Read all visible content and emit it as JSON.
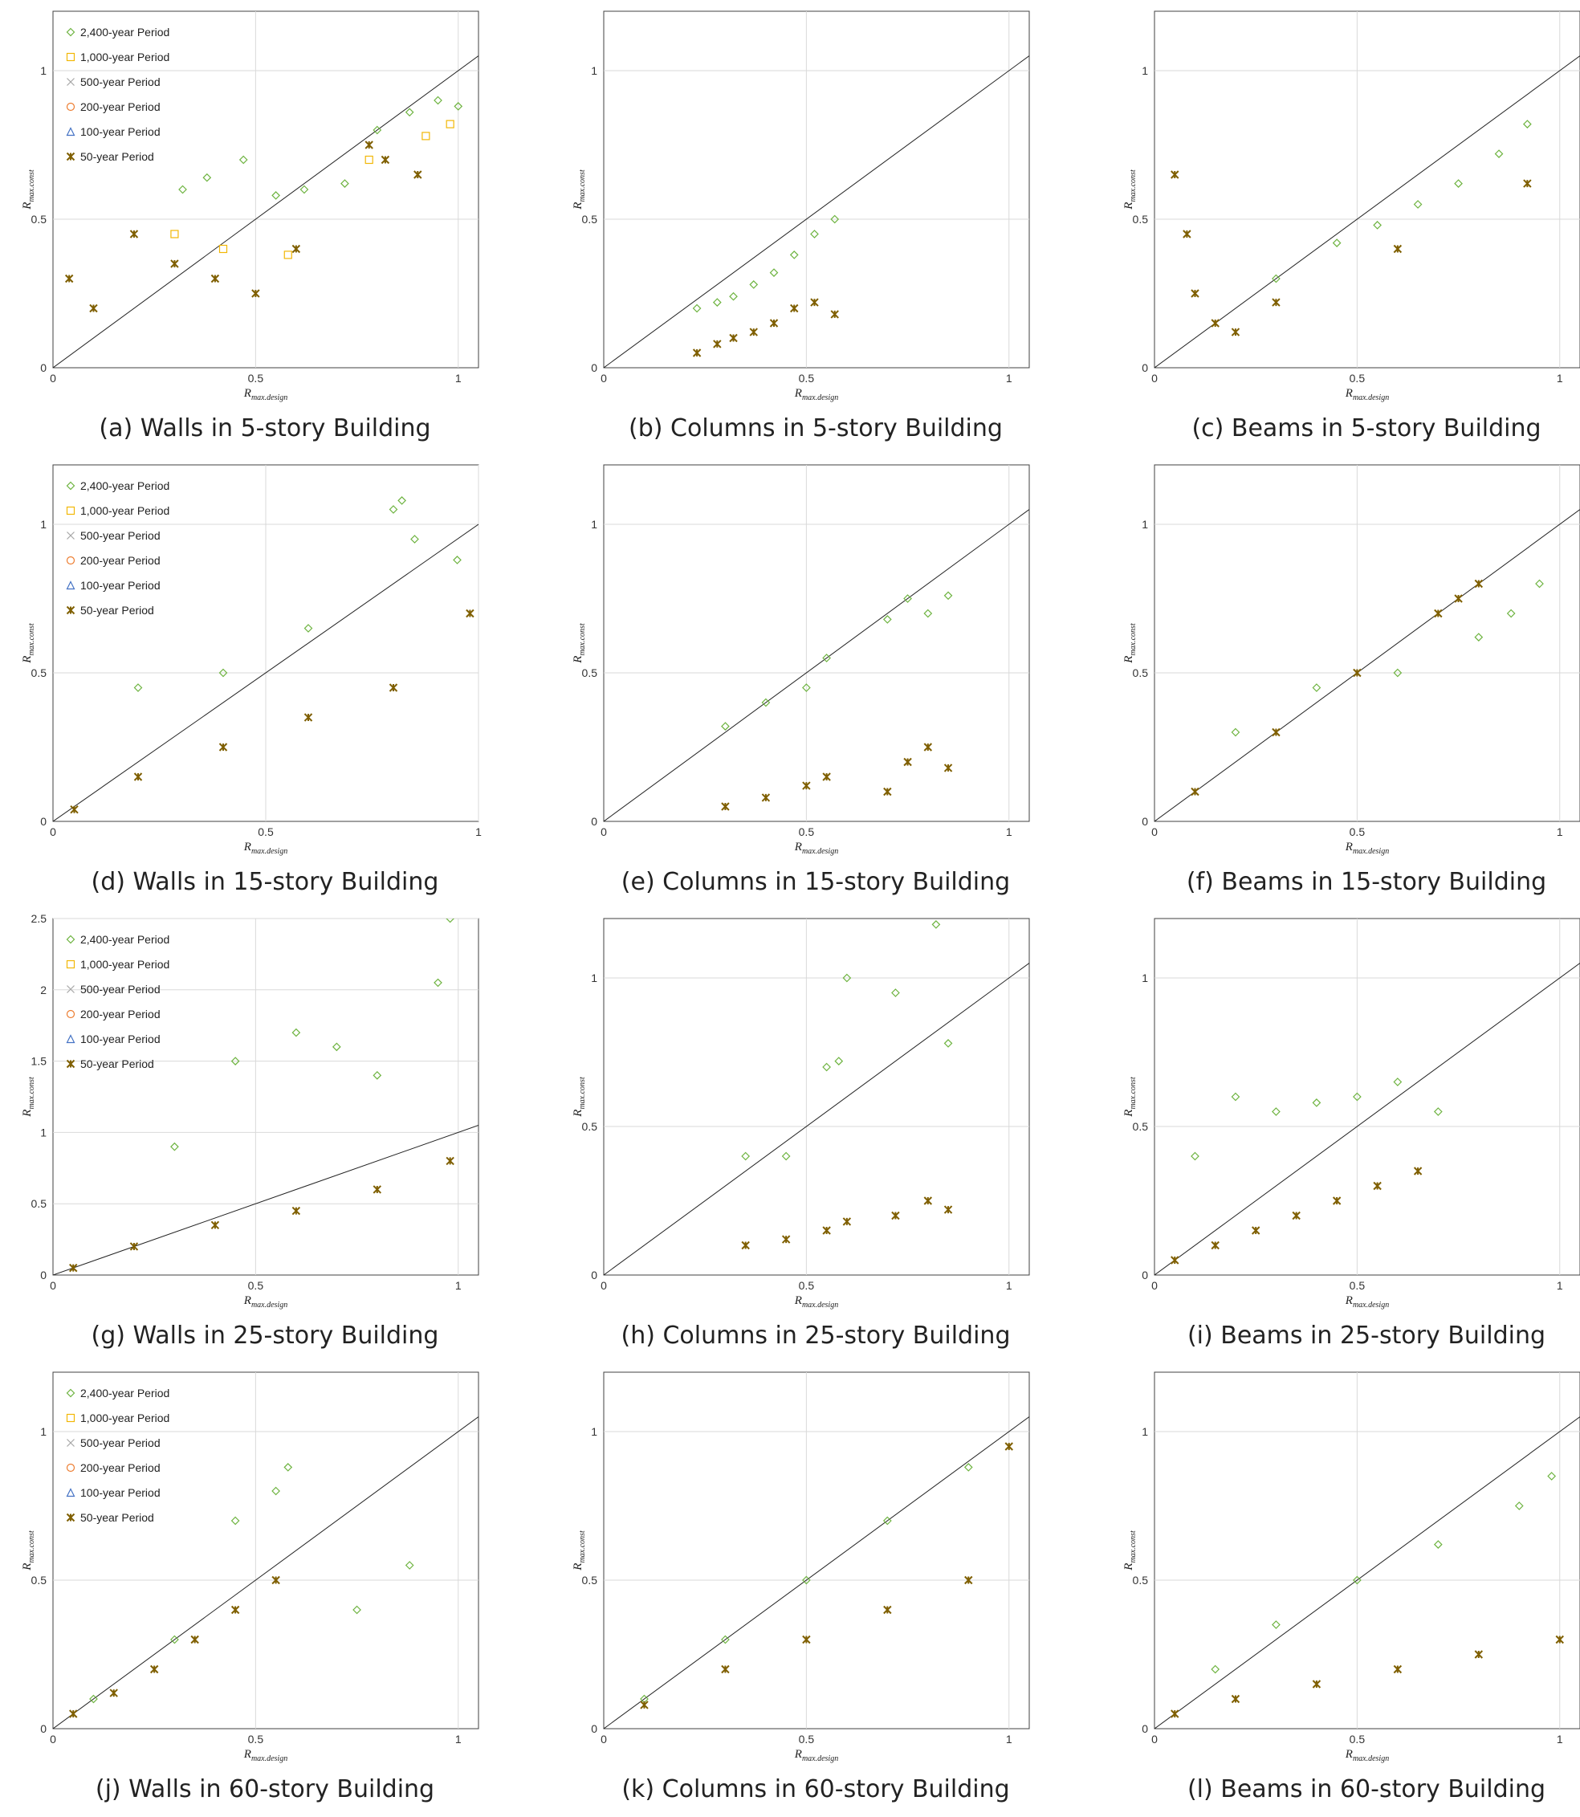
{
  "legend_entries": [
    "2,400-year Period",
    "1,000-year Period",
    "500-year Period",
    "200-year Period",
    "100-year Period",
    "50-year Period"
  ],
  "series_colors": [
    "#6db33f",
    "#f2b705",
    "#a6a6a6",
    "#ed7d31",
    "#4472c4",
    "#7f5f00"
  ],
  "series_markers": [
    "diamond",
    "square",
    "cross",
    "circle",
    "triangle",
    "star"
  ],
  "x_axis": {
    "label_main": "R",
    "label_sub": "max.design"
  },
  "y_axis": {
    "label_main": "R",
    "label_sub": "max.const"
  },
  "chart_data": [
    {
      "type": "scatter",
      "caption": "(a) Walls in 5-story Building",
      "xlim": [
        0,
        1.05
      ],
      "ylim": [
        0,
        1.2
      ],
      "xticks": [
        "0",
        "0.5",
        "1"
      ],
      "yticks": [
        "0",
        "0.5",
        "1"
      ],
      "legend": true,
      "reference_line": "y = x",
      "series": [
        {
          "name": "2,400-year Period",
          "x": [
            0.32,
            0.38,
            0.47,
            0.55,
            0.62,
            0.72,
            0.8,
            0.88,
            0.95,
            1.0
          ],
          "y": [
            0.6,
            0.64,
            0.7,
            0.58,
            0.6,
            0.62,
            0.8,
            0.86,
            0.9,
            0.88
          ]
        },
        {
          "name": "1,000-year Period",
          "x": [
            0.3,
            0.42,
            0.58,
            0.78,
            0.92,
            0.98
          ],
          "y": [
            0.45,
            0.4,
            0.38,
            0.7,
            0.78,
            0.82
          ]
        },
        {
          "name": "50-year Period",
          "x": [
            0.04,
            0.1,
            0.2,
            0.3,
            0.4,
            0.5,
            0.6,
            0.78,
            0.82,
            0.9
          ],
          "y": [
            0.3,
            0.2,
            0.45,
            0.35,
            0.3,
            0.25,
            0.4,
            0.75,
            0.7,
            0.65
          ]
        }
      ]
    },
    {
      "type": "scatter",
      "caption": "(b) Columns in 5-story Building",
      "xlim": [
        0,
        1.05
      ],
      "ylim": [
        0,
        1.2
      ],
      "xticks": [
        "0",
        "0.5",
        "1"
      ],
      "yticks": [
        "0",
        "0.5",
        "1"
      ],
      "legend": false,
      "reference_line": "y = x",
      "series": [
        {
          "name": "2,400-year Period",
          "x": [
            0.23,
            0.28,
            0.32,
            0.37,
            0.42,
            0.47,
            0.52,
            0.57
          ],
          "y": [
            0.2,
            0.22,
            0.24,
            0.28,
            0.32,
            0.38,
            0.45,
            0.5
          ]
        },
        {
          "name": "50-year Period",
          "x": [
            0.23,
            0.28,
            0.32,
            0.37,
            0.42,
            0.47,
            0.52,
            0.57
          ],
          "y": [
            0.05,
            0.08,
            0.1,
            0.12,
            0.15,
            0.2,
            0.22,
            0.18
          ]
        }
      ]
    },
    {
      "type": "scatter",
      "caption": "(c) Beams in 5-story Building",
      "xlim": [
        0,
        1.05
      ],
      "ylim": [
        0,
        1.2
      ],
      "xticks": [
        "0",
        "0.5",
        "1"
      ],
      "yticks": [
        "0",
        "0.5",
        "1"
      ],
      "legend": false,
      "reference_line": "y = x",
      "series": [
        {
          "name": "2,400-year Period",
          "x": [
            0.3,
            0.45,
            0.55,
            0.65,
            0.75,
            0.85,
            0.92
          ],
          "y": [
            0.3,
            0.42,
            0.48,
            0.55,
            0.62,
            0.72,
            0.82
          ]
        },
        {
          "name": "50-year Period",
          "x": [
            0.05,
            0.08,
            0.1,
            0.15,
            0.2,
            0.3,
            0.6,
            0.92
          ],
          "y": [
            0.65,
            0.45,
            0.25,
            0.15,
            0.12,
            0.22,
            0.4,
            0.62
          ]
        }
      ]
    },
    {
      "type": "scatter",
      "caption": "(d) Walls in 15-story Building",
      "xlim": [
        0,
        1
      ],
      "ylim": [
        0,
        1.2
      ],
      "xticks": [
        "0",
        "0.5",
        "1"
      ],
      "yticks": [
        "0",
        "0.5",
        "1"
      ],
      "legend": true,
      "reference_line": "y = x",
      "series": [
        {
          "name": "2,400-year Period",
          "x": [
            0.2,
            0.4,
            0.6,
            0.8,
            0.82,
            0.85,
            0.95
          ],
          "y": [
            0.45,
            0.5,
            0.65,
            1.05,
            1.08,
            0.95,
            0.88
          ]
        },
        {
          "name": "50-year Period",
          "x": [
            0.05,
            0.2,
            0.4,
            0.6,
            0.8,
            0.98
          ],
          "y": [
            0.04,
            0.15,
            0.25,
            0.35,
            0.45,
            0.7
          ]
        }
      ]
    },
    {
      "type": "scatter",
      "caption": "(e) Columns in 15-story Building",
      "xlim": [
        0,
        1.05
      ],
      "ylim": [
        0,
        1.2
      ],
      "xticks": [
        "0",
        "0.5",
        "1"
      ],
      "yticks": [
        "0",
        "0.5",
        "1"
      ],
      "legend": false,
      "reference_line": "y = x",
      "series": [
        {
          "name": "2,400-year Period",
          "x": [
            0.3,
            0.4,
            0.5,
            0.55,
            0.7,
            0.75,
            0.8,
            0.85
          ],
          "y": [
            0.32,
            0.4,
            0.45,
            0.55,
            0.68,
            0.75,
            0.7,
            0.76
          ]
        },
        {
          "name": "50-year Period",
          "x": [
            0.3,
            0.4,
            0.5,
            0.55,
            0.7,
            0.75,
            0.8,
            0.85
          ],
          "y": [
            0.05,
            0.08,
            0.12,
            0.15,
            0.1,
            0.2,
            0.25,
            0.18
          ]
        }
      ]
    },
    {
      "type": "scatter",
      "caption": "(f) Beams in 15-story Building",
      "xlim": [
        0,
        1.05
      ],
      "ylim": [
        0,
        1.2
      ],
      "xticks": [
        "0",
        "0.5",
        "1"
      ],
      "yticks": [
        "0",
        "0.5",
        "1"
      ],
      "legend": false,
      "reference_line": "y = x",
      "series": [
        {
          "name": "2,400-year Period",
          "x": [
            0.2,
            0.4,
            0.6,
            0.8,
            0.88,
            0.95
          ],
          "y": [
            0.3,
            0.45,
            0.5,
            0.62,
            0.7,
            0.8
          ]
        },
        {
          "name": "50-year Period",
          "x": [
            0.1,
            0.3,
            0.5,
            0.7,
            0.75,
            0.8
          ],
          "y": [
            0.1,
            0.3,
            0.5,
            0.7,
            0.75,
            0.8
          ]
        }
      ]
    },
    {
      "type": "scatter",
      "caption": "(g) Walls in 25-story Building",
      "xlim": [
        0,
        1.05
      ],
      "ylim": [
        0,
        2.5
      ],
      "xticks": [
        "0",
        "0.5",
        "1"
      ],
      "yticks": [
        "0",
        "0.5",
        "1",
        "1.5",
        "2",
        "2.5"
      ],
      "legend": true,
      "reference_line": "y = x",
      "series": [
        {
          "name": "2,400-year Period",
          "x": [
            0.3,
            0.45,
            0.6,
            0.7,
            0.8,
            0.95,
            0.98
          ],
          "y": [
            0.9,
            1.5,
            1.7,
            1.6,
            1.4,
            2.05,
            2.5
          ]
        },
        {
          "name": "50-year Period",
          "x": [
            0.05,
            0.2,
            0.4,
            0.6,
            0.8,
            0.98
          ],
          "y": [
            0.05,
            0.2,
            0.35,
            0.45,
            0.6,
            0.8
          ]
        }
      ]
    },
    {
      "type": "scatter",
      "caption": "(h) Columns in 25-story Building",
      "xlim": [
        0,
        1.05
      ],
      "ylim": [
        0,
        1.2
      ],
      "xticks": [
        "0",
        "0.5",
        "1"
      ],
      "yticks": [
        "0",
        "0.5",
        "1"
      ],
      "legend": false,
      "reference_line": "y = x",
      "series": [
        {
          "name": "2,400-year Period",
          "x": [
            0.35,
            0.45,
            0.55,
            0.58,
            0.6,
            0.72,
            0.82,
            0.85
          ],
          "y": [
            0.4,
            0.4,
            0.7,
            0.72,
            1.0,
            0.95,
            1.18,
            0.78
          ]
        },
        {
          "name": "50-year Period",
          "x": [
            0.35,
            0.45,
            0.55,
            0.6,
            0.72,
            0.8,
            0.85
          ],
          "y": [
            0.1,
            0.12,
            0.15,
            0.18,
            0.2,
            0.25,
            0.22
          ]
        }
      ]
    },
    {
      "type": "scatter",
      "caption": "(i) Beams in 25-story Building",
      "xlim": [
        0,
        1.05
      ],
      "ylim": [
        0,
        1.2
      ],
      "xticks": [
        "0",
        "0.5",
        "1"
      ],
      "yticks": [
        "0",
        "0.5",
        "1"
      ],
      "legend": false,
      "reference_line": "y = x",
      "series": [
        {
          "name": "2,400-year Period",
          "x": [
            0.1,
            0.2,
            0.3,
            0.4,
            0.5,
            0.6,
            0.7
          ],
          "y": [
            0.4,
            0.6,
            0.55,
            0.58,
            0.6,
            0.65,
            0.55
          ]
        },
        {
          "name": "50-year Period",
          "x": [
            0.05,
            0.15,
            0.25,
            0.35,
            0.45,
            0.55,
            0.65
          ],
          "y": [
            0.05,
            0.1,
            0.15,
            0.2,
            0.25,
            0.3,
            0.35
          ]
        }
      ]
    },
    {
      "type": "scatter",
      "caption": "(j) Walls in 60-story Building",
      "xlim": [
        0,
        1.05
      ],
      "ylim": [
        0,
        1.2
      ],
      "xticks": [
        "0",
        "0.5",
        "1"
      ],
      "yticks": [
        "0",
        "0.5",
        "1"
      ],
      "legend": true,
      "reference_line": "y = x",
      "series": [
        {
          "name": "2,400-year Period",
          "x": [
            0.1,
            0.3,
            0.45,
            0.55,
            0.58,
            0.75,
            0.88
          ],
          "y": [
            0.1,
            0.3,
            0.7,
            0.8,
            0.88,
            0.4,
            0.55
          ]
        },
        {
          "name": "50-year Period",
          "x": [
            0.05,
            0.15,
            0.25,
            0.35,
            0.45,
            0.55
          ],
          "y": [
            0.05,
            0.12,
            0.2,
            0.3,
            0.4,
            0.5
          ]
        }
      ]
    },
    {
      "type": "scatter",
      "caption": "(k) Columns in 60-story Building",
      "xlim": [
        0,
        1.05
      ],
      "ylim": [
        0,
        1.2
      ],
      "xticks": [
        "0",
        "0.5",
        "1"
      ],
      "yticks": [
        "0",
        "0.5",
        "1"
      ],
      "legend": false,
      "reference_line": "y = x",
      "series": [
        {
          "name": "2,400-year Period",
          "x": [
            0.1,
            0.3,
            0.5,
            0.7,
            0.9
          ],
          "y": [
            0.1,
            0.3,
            0.5,
            0.7,
            0.88
          ]
        },
        {
          "name": "50-year Period",
          "x": [
            0.1,
            0.3,
            0.5,
            0.7,
            0.9,
            1.0
          ],
          "y": [
            0.08,
            0.2,
            0.3,
            0.4,
            0.5,
            0.95
          ]
        }
      ]
    },
    {
      "type": "scatter",
      "caption": "(l) Beams in 60-story Building",
      "xlim": [
        0,
        1.05
      ],
      "ylim": [
        0,
        1.2
      ],
      "xticks": [
        "0",
        "0.5",
        "1"
      ],
      "yticks": [
        "0",
        "0.5",
        "1"
      ],
      "legend": false,
      "reference_line": "y = x",
      "series": [
        {
          "name": "2,400-year Period",
          "x": [
            0.15,
            0.3,
            0.5,
            0.7,
            0.9,
            0.98
          ],
          "y": [
            0.2,
            0.35,
            0.5,
            0.62,
            0.75,
            0.85
          ]
        },
        {
          "name": "50-year Period",
          "x": [
            0.05,
            0.2,
            0.4,
            0.6,
            0.8,
            1.0
          ],
          "y": [
            0.05,
            0.1,
            0.15,
            0.2,
            0.25,
            0.3
          ]
        }
      ]
    }
  ]
}
